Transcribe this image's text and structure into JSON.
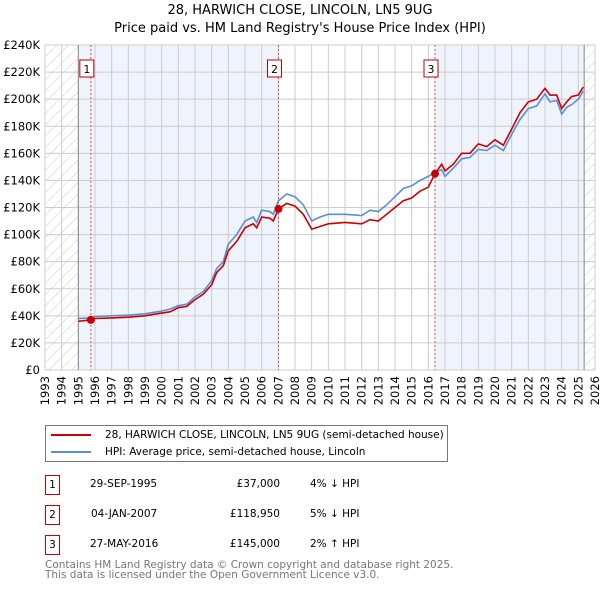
{
  "title_line1": "28, HARWICH CLOSE, LINCOLN, LN5 9UG",
  "title_line2": "Price paid vs. HM Land Registry's House Price Index (HPI)",
  "chart_data": {
    "type": "line",
    "title": "28, HARWICH CLOSE, LINCOLN, LN5 9UG — Price paid vs. HM Land Registry's House Price Index (HPI)",
    "xlim": [
      1993,
      2026
    ],
    "ylim": [
      0,
      240000
    ],
    "x_ticks": [
      "1993",
      "1994",
      "1995",
      "1996",
      "1997",
      "1998",
      "1999",
      "2000",
      "2001",
      "2002",
      "2003",
      "2004",
      "2005",
      "2006",
      "2007",
      "2008",
      "2009",
      "2010",
      "2011",
      "2012",
      "2013",
      "2014",
      "2015",
      "2016",
      "2017",
      "2018",
      "2019",
      "2020",
      "2021",
      "2022",
      "2023",
      "2024",
      "2025",
      "2026"
    ],
    "y_ticks": [
      {
        "v": 0,
        "label": "£0"
      },
      {
        "v": 20000,
        "label": "£20K"
      },
      {
        "v": 40000,
        "label": "£40K"
      },
      {
        "v": 60000,
        "label": "£60K"
      },
      {
        "v": 80000,
        "label": "£80K"
      },
      {
        "v": 100000,
        "label": "£100K"
      },
      {
        "v": 120000,
        "label": "£120K"
      },
      {
        "v": 140000,
        "label": "£140K"
      },
      {
        "v": 160000,
        "label": "£160K"
      },
      {
        "v": 180000,
        "label": "£180K"
      },
      {
        "v": 200000,
        "label": "£200K"
      },
      {
        "v": 220000,
        "label": "£220K"
      },
      {
        "v": 240000,
        "label": "£240K"
      }
    ],
    "grid": true,
    "shaded_ranges": [
      [
        1995.0,
        2007.01
      ],
      [
        2016.4,
        2025.35
      ]
    ],
    "hatched_ranges": [
      [
        1993,
        1995
      ],
      [
        2025.35,
        2026
      ]
    ],
    "series": [
      {
        "name": "28, HARWICH CLOSE, LINCOLN, LN5 9UG (semi-detached house)",
        "color": "#cc0000",
        "x": [
          1995,
          1995.75,
          1996,
          1997,
          1998,
          1999,
          2000,
          2000.5,
          2001,
          2001.5,
          2002,
          2002.5,
          2003,
          2003.3,
          2003.7,
          2004,
          2004.5,
          2005,
          2005.5,
          2005.7,
          2006,
          2006.5,
          2006.7,
          2007.01,
          2007.5,
          2008,
          2008.5,
          2009,
          2009.5,
          2010,
          2011,
          2012,
          2012.5,
          2013,
          2013.5,
          2014,
          2014.5,
          2015,
          2015.5,
          2016,
          2016.4,
          2016.8,
          2017,
          2017.5,
          2018,
          2018.5,
          2019,
          2019.5,
          2020,
          2020.5,
          2021,
          2021.5,
          2022,
          2022.5,
          2023,
          2023.3,
          2023.7,
          2024,
          2024.3,
          2024.6,
          2025,
          2025.3
        ],
        "y": [
          36000,
          37000,
          38000,
          38500,
          39000,
          40000,
          42000,
          43000,
          46000,
          47000,
          52000,
          56000,
          63000,
          72000,
          77000,
          88000,
          95000,
          105000,
          108000,
          105000,
          113000,
          112000,
          110000,
          118950,
          123000,
          121000,
          115000,
          104000,
          106000,
          108000,
          109000,
          108000,
          111000,
          110000,
          115000,
          120000,
          125000,
          127000,
          132000,
          135000,
          145000,
          152000,
          147000,
          152000,
          160000,
          160000,
          167000,
          165000,
          170000,
          166000,
          178000,
          190000,
          198000,
          200000,
          208000,
          203000,
          203000,
          193000,
          198000,
          202000,
          203000,
          209000
        ]
      },
      {
        "name": "HPI: Average price, semi-detached house, Lincoln",
        "color": "#5b8fd4",
        "x": [
          1995,
          1995.75,
          1996,
          1997,
          1998,
          1999,
          2000,
          2000.5,
          2001,
          2001.5,
          2002,
          2002.5,
          2003,
          2003.3,
          2003.7,
          2004,
          2004.5,
          2005,
          2005.5,
          2005.7,
          2006,
          2006.5,
          2006.7,
          2007.01,
          2007.5,
          2008,
          2008.5,
          2009,
          2009.5,
          2010,
          2011,
          2012,
          2012.5,
          2013,
          2013.5,
          2014,
          2014.5,
          2015,
          2015.5,
          2016,
          2016.4,
          2016.8,
          2017,
          2017.5,
          2018,
          2018.5,
          2019,
          2019.5,
          2020,
          2020.5,
          2021,
          2021.5,
          2022,
          2022.5,
          2023,
          2023.3,
          2023.7,
          2024,
          2024.3,
          2024.6,
          2025,
          2025.3
        ],
        "y": [
          38000,
          38500,
          39500,
          40000,
          40500,
          41500,
          43500,
          45000,
          47500,
          48500,
          54000,
          58000,
          66000,
          75000,
          80000,
          93000,
          100000,
          110000,
          113000,
          109000,
          118000,
          117000,
          115000,
          125000,
          130000,
          128000,
          122000,
          110000,
          113000,
          115000,
          115000,
          114000,
          118000,
          117000,
          122000,
          128000,
          134000,
          136000,
          140000,
          143000,
          146000,
          148000,
          143000,
          149000,
          156000,
          157000,
          163000,
          162000,
          166000,
          162000,
          174000,
          185000,
          193000,
          195000,
          204000,
          198000,
          199000,
          189000,
          194000,
          196000,
          200000,
          206000
        ]
      }
    ],
    "sales": [
      {
        "num": "1",
        "x": 1995.75,
        "y": 37000
      },
      {
        "num": "2",
        "x": 2007.01,
        "y": 118950
      },
      {
        "num": "3",
        "x": 2016.4,
        "y": 145000
      }
    ]
  },
  "legend": {
    "property": "28, HARWICH CLOSE, LINCOLN, LN5 9UG (semi-detached house)",
    "hpi": "HPI: Average price, semi-detached house, Lincoln"
  },
  "transactions": [
    {
      "num": "1",
      "date": "29-SEP-1995",
      "price": "£37,000",
      "hpi": "4% ↓ HPI"
    },
    {
      "num": "2",
      "date": "04-JAN-2007",
      "price": "£118,950",
      "hpi": "5% ↓ HPI"
    },
    {
      "num": "3",
      "date": "27-MAY-2016",
      "price": "£145,000",
      "hpi": "2% ↑ HPI"
    }
  ],
  "footer_line1": "Contains HM Land Registry data © Crown copyright and database right 2025.",
  "footer_line2": "This data is licensed under the Open Government Licence v3.0."
}
